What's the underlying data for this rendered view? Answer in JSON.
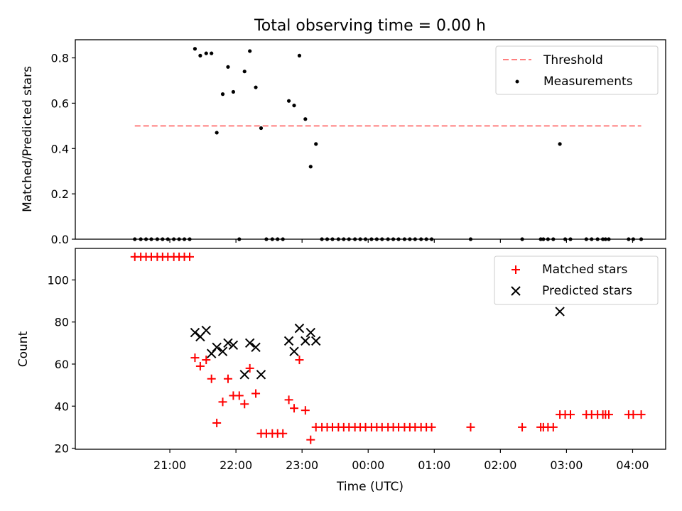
{
  "chart_data": [
    {
      "type": "scatter",
      "title": "Total observing time = 0.00 h",
      "xlabel": "",
      "ylabel": "Matched/Predicted stars",
      "ylim": [
        0,
        0.88
      ],
      "yticks": [
        0.0,
        0.2,
        0.4,
        0.6,
        0.8
      ],
      "yticklabels": [
        "0.0",
        "0.2",
        "0.4",
        "0.6",
        "0.8"
      ],
      "legend_position": "top-right",
      "threshold": {
        "name": "Threshold",
        "value": 0.5,
        "x_range": [
          20.47,
          28.13
        ],
        "color": "#ff7f7f"
      },
      "series": [
        {
          "name": "Measurements",
          "color": "#000000",
          "x": [
            20.47,
            20.56,
            20.64,
            20.72,
            20.81,
            20.89,
            20.97,
            21.06,
            21.14,
            21.22,
            21.3,
            21.38,
            21.46,
            21.55,
            21.63,
            21.71,
            21.8,
            21.88,
            21.96,
            22.05,
            22.13,
            22.21,
            22.3,
            22.38,
            22.46,
            22.55,
            22.63,
            22.71,
            22.8,
            22.88,
            22.96,
            23.05,
            23.13,
            23.21,
            23.3,
            23.38,
            23.46,
            23.55,
            23.63,
            23.71,
            23.8,
            23.88,
            23.96,
            24.05,
            24.13,
            24.21,
            24.3,
            24.38,
            24.46,
            24.55,
            24.63,
            24.71,
            24.8,
            24.88,
            24.96,
            25.55,
            26.33,
            26.61,
            26.65,
            26.72,
            26.8,
            26.9,
            26.98,
            27.06,
            27.3,
            27.38,
            27.47,
            27.55,
            27.59,
            27.64,
            27.94,
            28.01,
            28.13
          ],
          "y": [
            0,
            0,
            0,
            0,
            0,
            0,
            0,
            0,
            0,
            0,
            0,
            0.84,
            0.81,
            0.82,
            0.82,
            0.47,
            0.64,
            0.76,
            0.65,
            0,
            0.74,
            0.83,
            0.67,
            0.49,
            0,
            0,
            0,
            0,
            0.61,
            0.59,
            0.81,
            0.53,
            0.32,
            0.42,
            0,
            0,
            0,
            0,
            0,
            0,
            0,
            0,
            0,
            0,
            0,
            0,
            0,
            0,
            0,
            0,
            0,
            0,
            0,
            0,
            0,
            0,
            0,
            0,
            0,
            0,
            0,
            0.42,
            0,
            0,
            0,
            0,
            0,
            0,
            0,
            0,
            0,
            0,
            0
          ]
        }
      ],
      "x_tick_labels_visible": false
    },
    {
      "type": "scatter",
      "title": "",
      "xlabel": "Time (UTC)",
      "ylabel": "Count",
      "ylim": [
        19.5,
        115
      ],
      "yticks": [
        20,
        40,
        60,
        80,
        100
      ],
      "yticklabels": [
        "20",
        "40",
        "60",
        "80",
        "100"
      ],
      "xlim": [
        19.57,
        28.5
      ],
      "xticks": [
        21,
        22,
        23,
        24,
        25,
        26,
        27,
        28
      ],
      "xticklabels": [
        "21:00",
        "22:00",
        "23:00",
        "00:00",
        "01:00",
        "02:00",
        "03:00",
        "04:00"
      ],
      "legend_position": "top-right",
      "series": [
        {
          "name": "Matched stars",
          "marker": "+",
          "color": "#ff0000",
          "x": [
            20.47,
            20.56,
            20.64,
            20.72,
            20.81,
            20.89,
            20.97,
            21.06,
            21.14,
            21.22,
            21.3,
            21.38,
            21.46,
            21.55,
            21.63,
            21.71,
            21.8,
            21.88,
            21.96,
            22.05,
            22.13,
            22.21,
            22.3,
            22.38,
            22.46,
            22.55,
            22.63,
            22.71,
            22.8,
            22.88,
            22.96,
            23.05,
            23.13,
            23.21,
            23.3,
            23.38,
            23.46,
            23.55,
            23.63,
            23.71,
            23.8,
            23.88,
            23.96,
            24.05,
            24.13,
            24.21,
            24.3,
            24.38,
            24.46,
            24.55,
            24.63,
            24.71,
            24.8,
            24.88,
            24.96,
            25.55,
            26.33,
            26.61,
            26.65,
            26.72,
            26.8,
            26.9,
            26.98,
            27.06,
            27.3,
            27.38,
            27.47,
            27.55,
            27.59,
            27.64,
            27.94,
            28.01,
            28.13
          ],
          "y": [
            111,
            111,
            111,
            111,
            111,
            111,
            111,
            111,
            111,
            111,
            111,
            63,
            59,
            62,
            53,
            32,
            42,
            53,
            45,
            45,
            41,
            58,
            46,
            27,
            27,
            27,
            27,
            27,
            43,
            39,
            62,
            38,
            24,
            30,
            30,
            30,
            30,
            30,
            30,
            30,
            30,
            30,
            30,
            30,
            30,
            30,
            30,
            30,
            30,
            30,
            30,
            30,
            30,
            30,
            30,
            30,
            30,
            30,
            30,
            30,
            30,
            36,
            36,
            36,
            36,
            36,
            36,
            36,
            36,
            36,
            36,
            36,
            36
          ]
        },
        {
          "name": "Predicted stars",
          "marker": "x",
          "color": "#000000",
          "x": [
            21.38,
            21.46,
            21.55,
            21.63,
            21.71,
            21.8,
            21.88,
            21.96,
            22.13,
            22.21,
            22.3,
            22.38,
            22.8,
            22.88,
            22.96,
            23.05,
            23.13,
            23.21,
            26.9
          ],
          "y": [
            75,
            73,
            76,
            65,
            68,
            66,
            70,
            69,
            55,
            70,
            68,
            55,
            71,
            66,
            77,
            71,
            75,
            71,
            85
          ]
        }
      ]
    }
  ]
}
